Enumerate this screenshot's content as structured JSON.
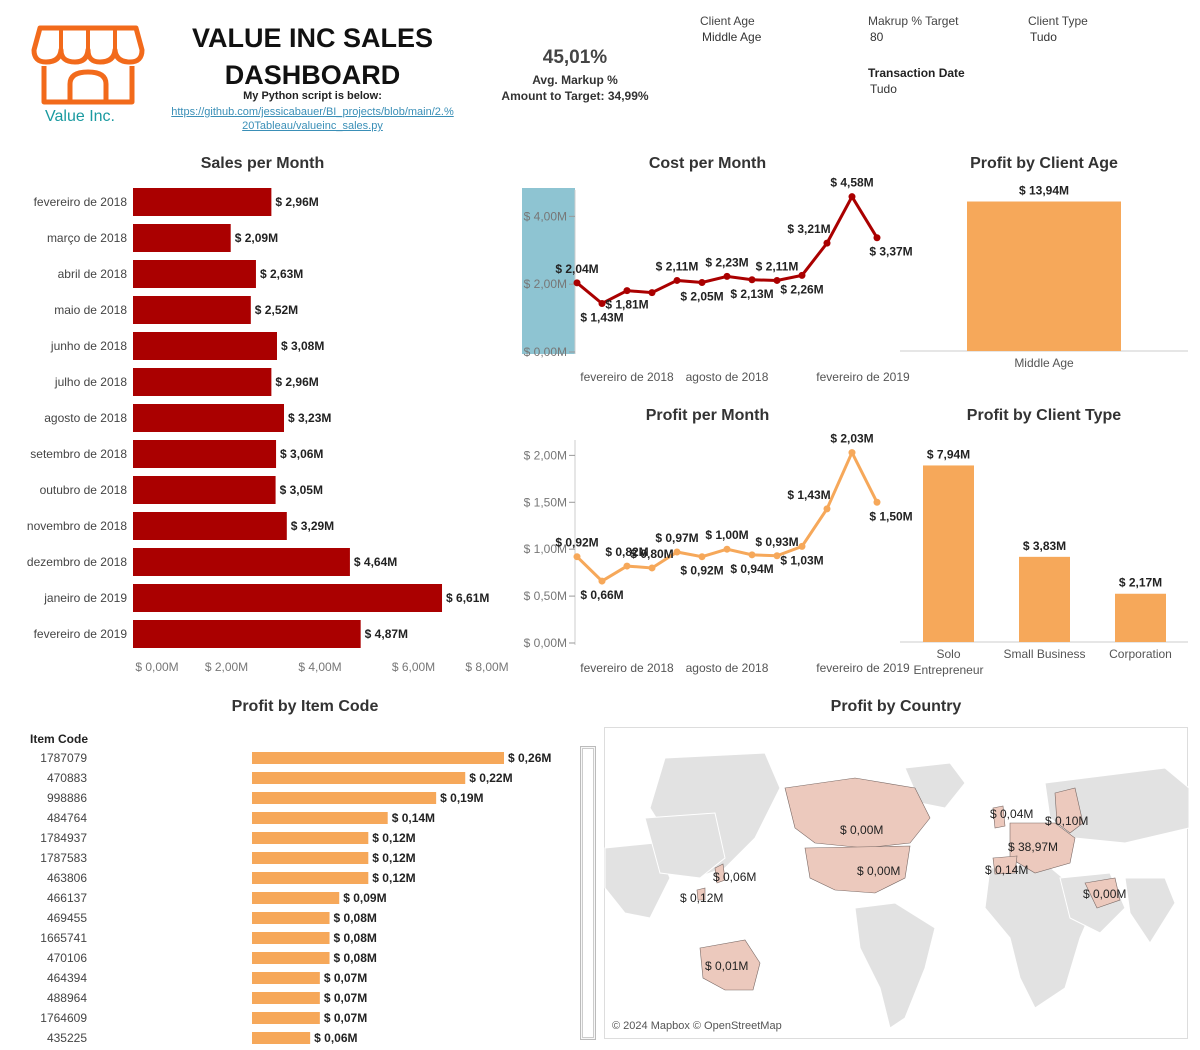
{
  "header": {
    "title": "VALUE INC SALES DASHBOARD",
    "logo_text": "Value Inc.",
    "script_note": "My Python script is below:",
    "script_link": "https://github.com/jessicabauer/BI_projects/blob/main/2.%20Tableau/valueinc_sales.py"
  },
  "kpi": {
    "value": "45,01%",
    "label": "Avg. Markup %",
    "target": "Amount to Target: 34,99%"
  },
  "filters": [
    {
      "label": "Client Age",
      "value": "Middle Age",
      "bold": false
    },
    {
      "label": "Makrup % Target",
      "value": "80",
      "bold": false
    },
    {
      "label": "Client Type",
      "value": "Tudo",
      "bold": false
    },
    {
      "label": "Transaction Date",
      "value": "Tudo",
      "bold": true
    }
  ],
  "colors": {
    "dark_red": "#aa0000",
    "orange": "#f6a85a",
    "teal_band": "#8ec4d2",
    "map_fill": "#ecc9bd",
    "map_land": "#e2e2e2"
  },
  "chart_data": [
    {
      "id": "sales_per_month",
      "type": "bar",
      "orientation": "horizontal",
      "title": "Sales per Month",
      "categories": [
        "fevereiro de 2018",
        "março de 2018",
        "abril de 2018",
        "maio de 2018",
        "junho de 2018",
        "julho de 2018",
        "agosto de 2018",
        "setembro de 2018",
        "outubro de 2018",
        "novembro de 2018",
        "dezembro de 2018",
        "janeiro de 2019",
        "fevereiro de 2019"
      ],
      "values": [
        2.96,
        2.09,
        2.63,
        2.52,
        3.08,
        2.96,
        3.23,
        3.06,
        3.05,
        3.29,
        4.64,
        6.61,
        4.87
      ],
      "labels": [
        "$ 2,96M",
        "$ 2,09M",
        "$ 2,63M",
        "$ 2,52M",
        "$ 3,08M",
        "$ 2,96M",
        "$ 3,23M",
        "$ 3,06M",
        "$ 3,05M",
        "$ 3,29M",
        "$ 4,64M",
        "$ 6,61M",
        "$ 4,87M"
      ],
      "xlim": [
        0,
        8
      ],
      "ticks": [
        0,
        2,
        4,
        6,
        8
      ],
      "tick_labels": [
        "$ 0,00M",
        "$ 2,00M",
        "$ 4,00M",
        "$ 6,00M",
        "$ 8,00M"
      ]
    },
    {
      "id": "cost_per_month",
      "type": "line",
      "title": "Cost per Month",
      "values": [
        2.04,
        1.43,
        1.81,
        1.75,
        2.11,
        2.05,
        2.23,
        2.13,
        2.11,
        2.26,
        3.21,
        4.58,
        3.37
      ],
      "labels": [
        "$ 2,04M",
        "$ 1,43M",
        "$ 1,81M",
        "",
        "$ 2,11M",
        "$ 2,05M",
        "$ 2,23M",
        "$ 2,13M",
        "$ 2,11M",
        "$ 2,26M",
        "$ 3,21M",
        "$ 4,58M",
        "$ 3,37M"
      ],
      "ylim": [
        0,
        4.6
      ],
      "ticks": [
        0,
        2,
        4
      ],
      "tick_labels": [
        "$ 0,00M",
        "$ 2,00M",
        "$ 4,00M"
      ],
      "x_tick_labels": [
        "fevereiro de 2018",
        "agosto de 2018",
        "fevereiro de 2019"
      ],
      "x_tick_index": [
        0,
        6,
        12
      ]
    },
    {
      "id": "profit_per_month",
      "type": "line",
      "title": "Profit per Month",
      "values": [
        0.92,
        0.66,
        0.82,
        0.8,
        0.97,
        0.92,
        1.0,
        0.94,
        0.93,
        1.03,
        1.43,
        2.03,
        1.5
      ],
      "labels": [
        "$ 0,92M",
        "$ 0,66M",
        "$ 0,82M",
        "$ 0,80M",
        "$ 0,97M",
        "$ 0,92M",
        "$ 1,00M",
        "$ 0,94M",
        "$ 0,93M",
        "$ 1,03M",
        "$ 1,43M",
        "$ 2,03M",
        "$ 1,50M"
      ],
      "ylim": [
        0,
        2.1
      ],
      "ticks": [
        0,
        0.5,
        1,
        1.5,
        2
      ],
      "tick_labels": [
        "$ 0,00M",
        "$ 0,50M",
        "$ 1,00M",
        "$ 1,50M",
        "$ 2,00M"
      ],
      "x_tick_labels": [
        "fevereiro de 2018",
        "agosto de 2018",
        "fevereiro de 2019"
      ],
      "x_tick_index": [
        0,
        6,
        12
      ]
    },
    {
      "id": "profit_by_client_age",
      "type": "bar",
      "title": "Profit by Client Age",
      "categories": [
        "Middle Age"
      ],
      "values": [
        13.94
      ],
      "labels": [
        "$ 13,94M"
      ],
      "ylim": [
        0,
        15.2
      ]
    },
    {
      "id": "profit_by_client_type",
      "type": "bar",
      "title": "Profit by Client Type",
      "categories": [
        "Solo Entrepreneur",
        "Small Business",
        "Corporation"
      ],
      "category_lines": [
        [
          "Solo",
          "Entrepreneur"
        ],
        [
          "Small Business"
        ],
        [
          "Corporation"
        ]
      ],
      "values": [
        7.94,
        3.83,
        2.17
      ],
      "labels": [
        "$ 7,94M",
        "$ 3,83M",
        "$ 2,17M"
      ],
      "ylim": [
        0,
        8.5
      ]
    },
    {
      "id": "profit_by_item_code",
      "type": "bar",
      "orientation": "horizontal",
      "title": "Profit by Item Code",
      "column_header": "Item Code",
      "categories": [
        "1787079",
        "470883",
        "998886",
        "484764",
        "1784937",
        "1787583",
        "463806",
        "466137",
        "469455",
        "1665741",
        "470106",
        "464394",
        "488964",
        "1764609",
        "435225"
      ],
      "values": [
        0.26,
        0.22,
        0.19,
        0.14,
        0.12,
        0.12,
        0.12,
        0.09,
        0.08,
        0.08,
        0.08,
        0.07,
        0.07,
        0.07,
        0.06
      ],
      "labels": [
        "$ 0,26M",
        "$ 0,22M",
        "$ 0,19M",
        "$ 0,14M",
        "$ 0,12M",
        "$ 0,12M",
        "$ 0,12M",
        "$ 0,09M",
        "$ 0,08M",
        "$ 0,08M",
        "$ 0,08M",
        "$ 0,07M",
        "$ 0,07M",
        "$ 0,07M",
        "$ 0,06M"
      ],
      "xlim": [
        0,
        0.26
      ]
    },
    {
      "id": "profit_by_country",
      "type": "map",
      "title": "Profit by Country",
      "credit": "© 2024 Mapbox © OpenStreetMap",
      "points": [
        {
          "region": "Canada",
          "label": "$ 0,00M",
          "value": 0.0
        },
        {
          "region": "United States",
          "label": "$ 0,00M",
          "value": 0.0
        },
        {
          "region": "Japan",
          "label": "$ 0,06M",
          "value": 0.06
        },
        {
          "region": "Philippines",
          "label": "$ 0,12M",
          "value": 0.12
        },
        {
          "region": "Australia",
          "label": "$ 0,01M",
          "value": 0.01
        },
        {
          "region": "United Kingdom",
          "label": "$ 0,04M",
          "value": 0.04
        },
        {
          "region": "Scandinavia",
          "label": "$ 0,10M",
          "value": 0.1
        },
        {
          "region": "Central Europe",
          "label": "$ 38,97M",
          "value": 38.97
        },
        {
          "region": "Spain",
          "label": "$ 0,14M",
          "value": 0.14
        },
        {
          "region": "Middle East",
          "label": "$ 0,00M",
          "value": 0.0
        }
      ]
    }
  ]
}
